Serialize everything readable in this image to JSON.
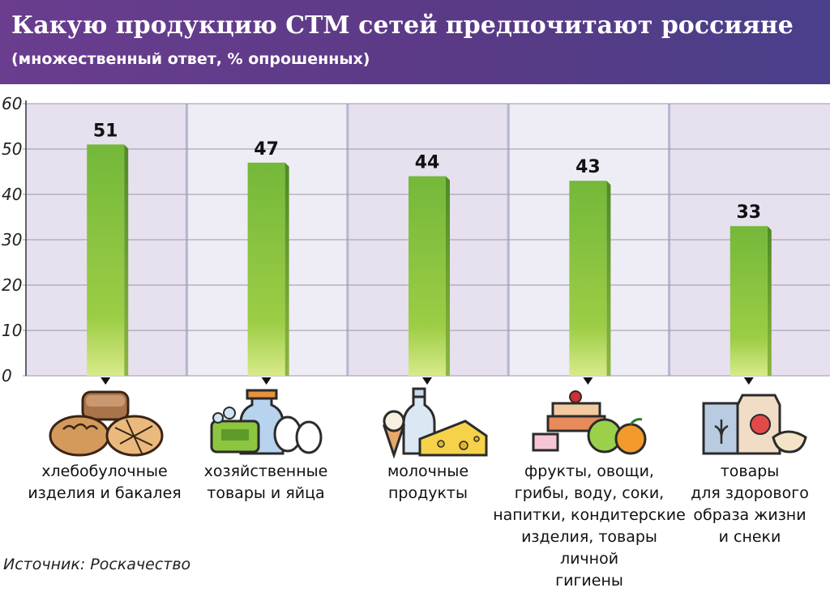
{
  "header": {
    "title": "Какую продукцию СТМ сетей предпочитают россияне",
    "subtitle": "(множественный ответ, % опрошенных)"
  },
  "source": "Источник: Роскачество",
  "colors": {
    "header_bg": "#5a3a86",
    "bar_green": "#7cbf3b",
    "band_purple": "#e6e0ef",
    "band_light": "#eeecf4"
  },
  "chart_data": {
    "type": "bar",
    "title": "Какую продукцию СТМ сетей предпочитают россияне",
    "subtitle": "(множественный ответ, % опрошенных)",
    "categories": [
      "хлебобулочные\nизделия и бакалея",
      "хозяйственные\nтовары и яйца",
      "молочные\nпродукты",
      "фрукты, овощи,\nгрибы, воду, соки,\nнапитки, кондитерские\nизделия, товары личной\nгигиены",
      "товары\nдля здорового\nобраза жизни\nи снеки"
    ],
    "values": [
      51,
      47,
      44,
      43,
      33
    ],
    "data_labels": [
      "51",
      "47",
      "44",
      "43",
      "33"
    ],
    "yticks": [
      "0",
      "10",
      "20",
      "30",
      "40",
      "50",
      "60"
    ],
    "ylim": [
      0,
      60
    ],
    "xlabel": "",
    "ylabel": "",
    "grid": true,
    "category_icons": [
      "bread-icon",
      "cleaning-eggs-icon",
      "dairy-icon",
      "fruit-cake-icon",
      "healthy-food-icon"
    ]
  }
}
